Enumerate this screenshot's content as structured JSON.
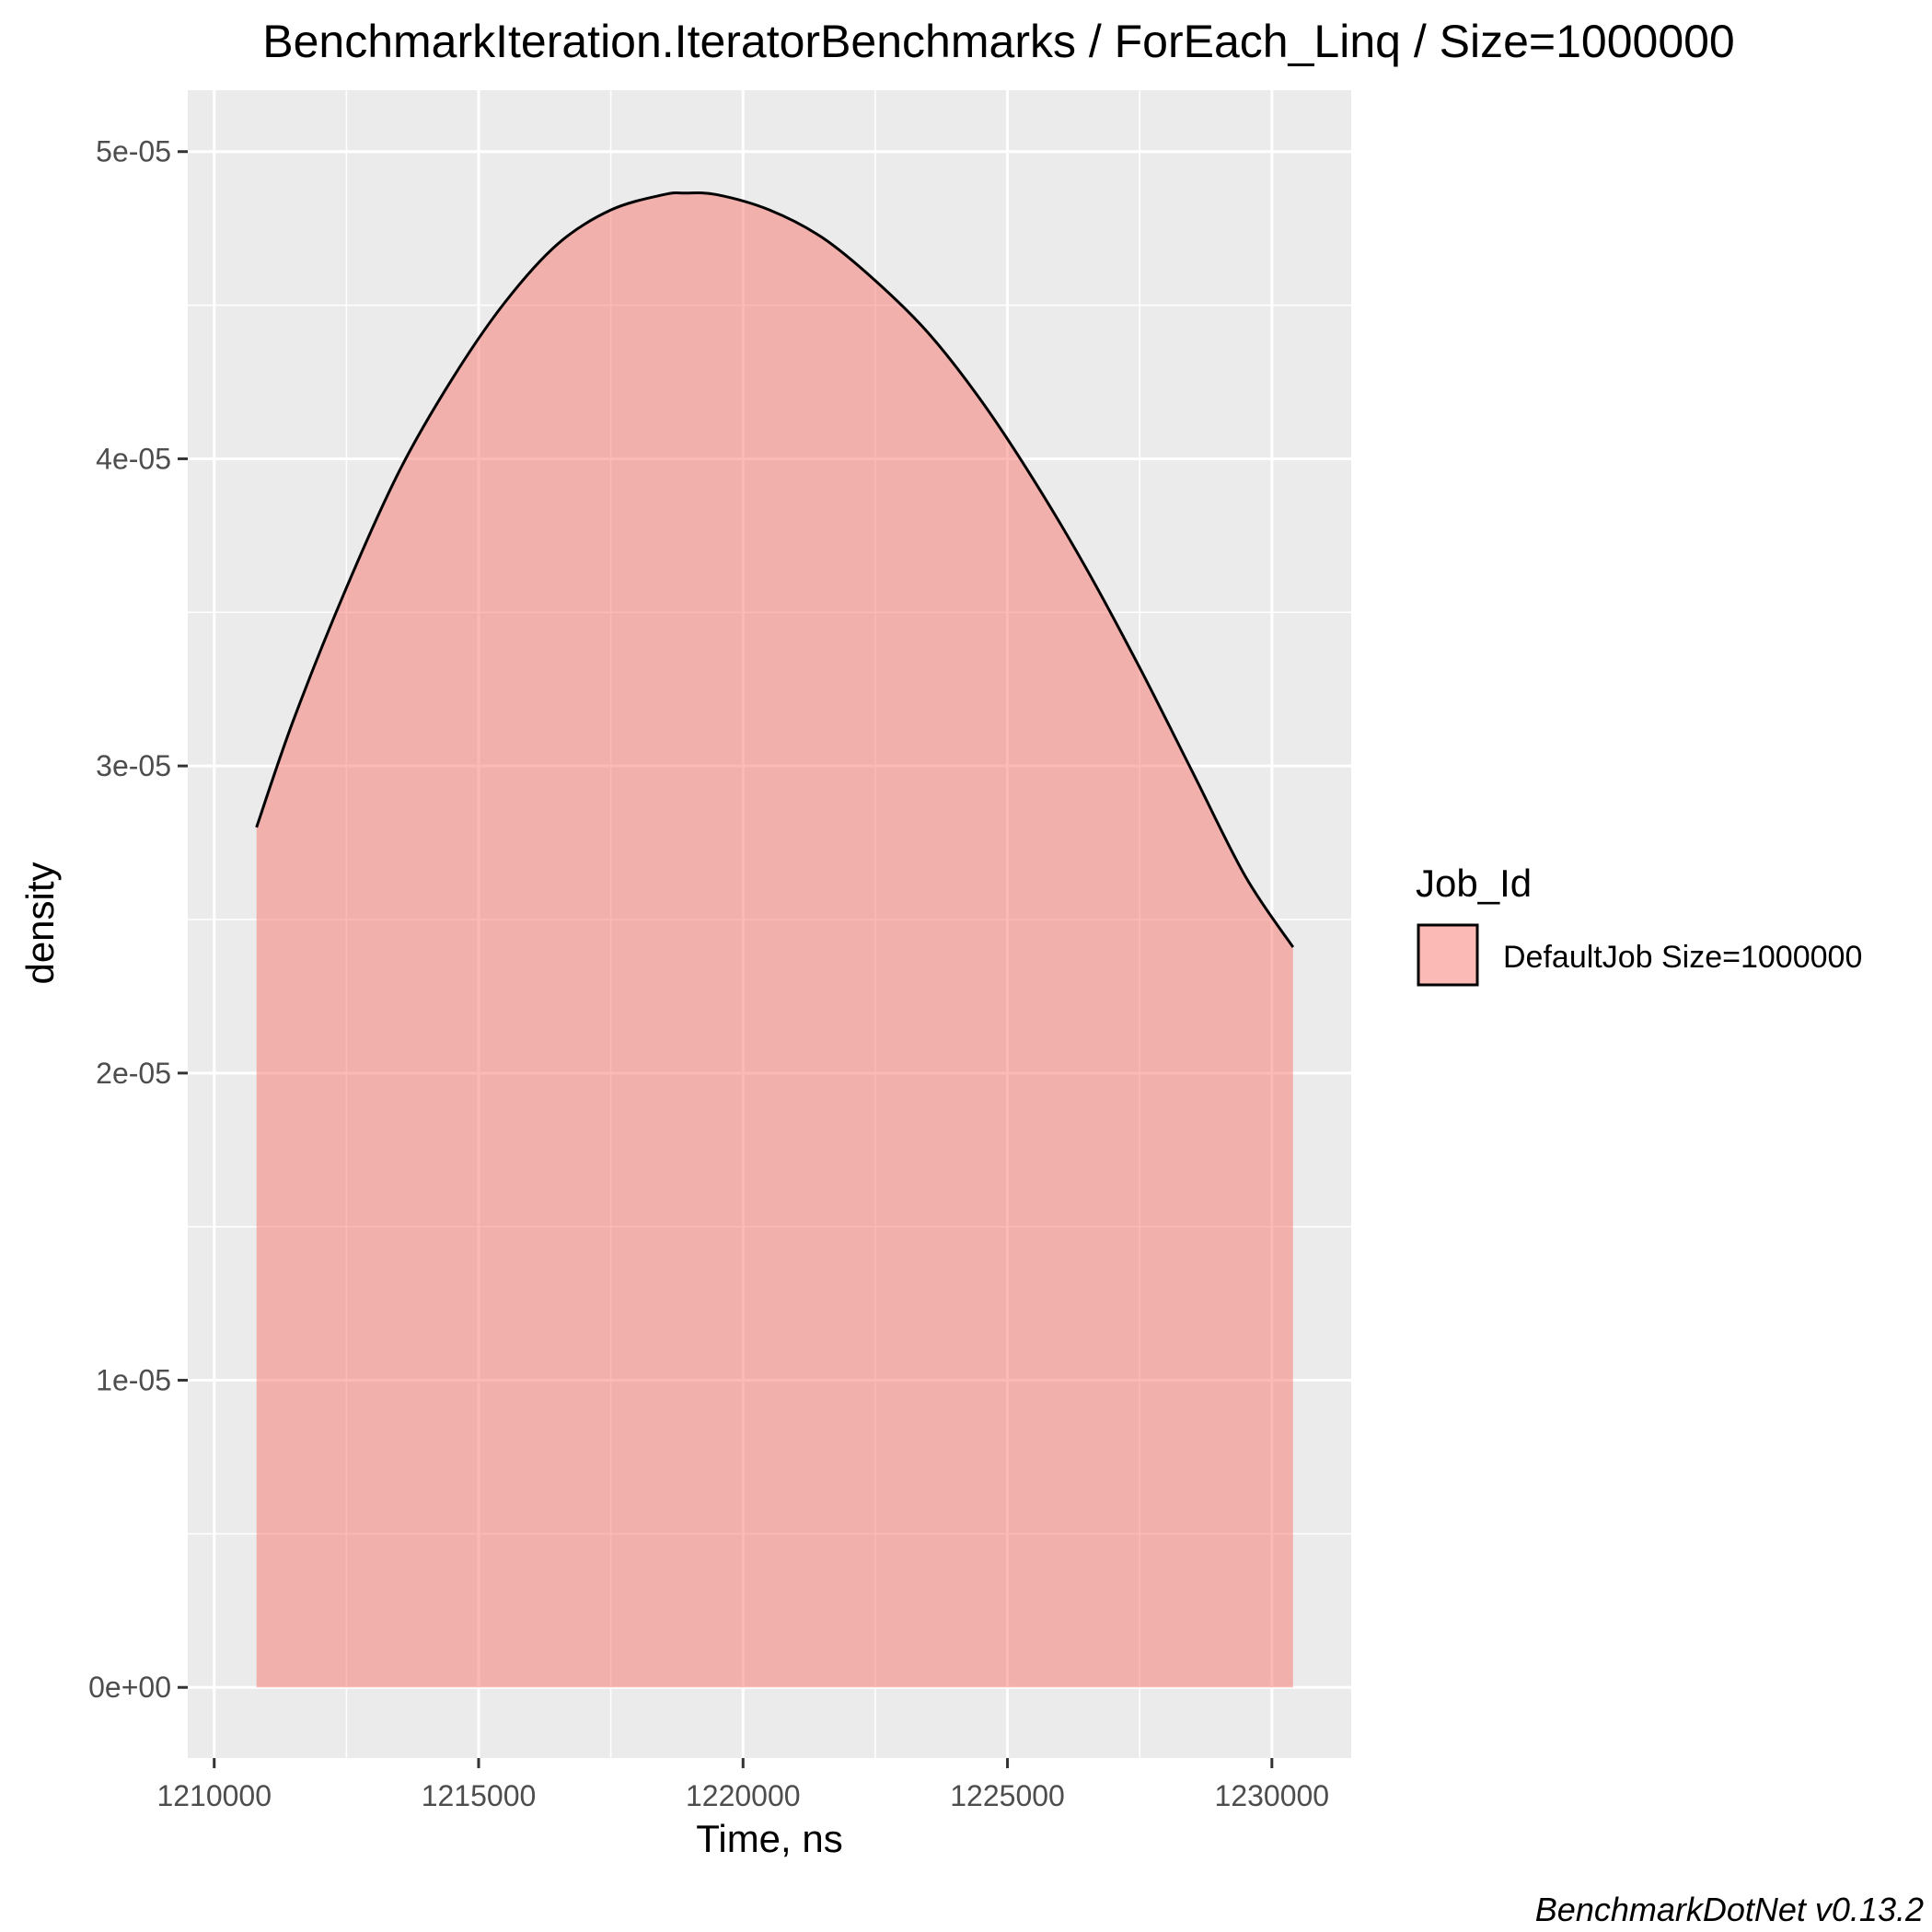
{
  "chart_data": {
    "type": "area",
    "title": "BenchmarkIteration.IteratorBenchmarks / ForEach_Linq / Size=1000000",
    "xlabel": "Time, ns",
    "ylabel": "density",
    "caption": "BenchmarkDotNet v0.13.2",
    "xlim": [
      1209500,
      1231500
    ],
    "ylim": [
      -2.3e-06,
      5.2e-05
    ],
    "x_ticks": [
      1210000,
      1215000,
      1220000,
      1225000,
      1230000
    ],
    "x_tick_labels": [
      "1210000",
      "1215000",
      "1220000",
      "1225000",
      "1230000"
    ],
    "y_ticks": [
      0,
      1e-05,
      2e-05,
      3e-05,
      4e-05,
      5e-05
    ],
    "y_tick_labels": [
      "0e+00",
      "1e-05",
      "2e-05",
      "3e-05",
      "4e-05",
      "5e-05"
    ],
    "grid": true,
    "legend": {
      "title": "Job_Id",
      "position": "right",
      "entries": [
        {
          "label": "DefaultJob Size=1000000",
          "color": "#F8766D"
        }
      ]
    },
    "series": [
      {
        "name": "DefaultJob Size=1000000",
        "color": "#F8766D",
        "x": [
          1210800,
          1211500,
          1212500,
          1213500,
          1214500,
          1215500,
          1216500,
          1217500,
          1218500,
          1218900,
          1219500,
          1220500,
          1221500,
          1222500,
          1223500,
          1224500,
          1225500,
          1226500,
          1227500,
          1228500,
          1229500,
          1230400
        ],
        "y": [
          2.8e-05,
          3.15e-05,
          3.58e-05,
          3.96e-05,
          4.26e-05,
          4.51e-05,
          4.7e-05,
          4.81e-05,
          4.86e-05,
          4.865e-05,
          4.86e-05,
          4.81e-05,
          4.72e-05,
          4.58e-05,
          4.41e-05,
          4.19e-05,
          3.93e-05,
          3.64e-05,
          3.32e-05,
          2.98e-05,
          2.64e-05,
          2.41e-05
        ]
      }
    ]
  }
}
